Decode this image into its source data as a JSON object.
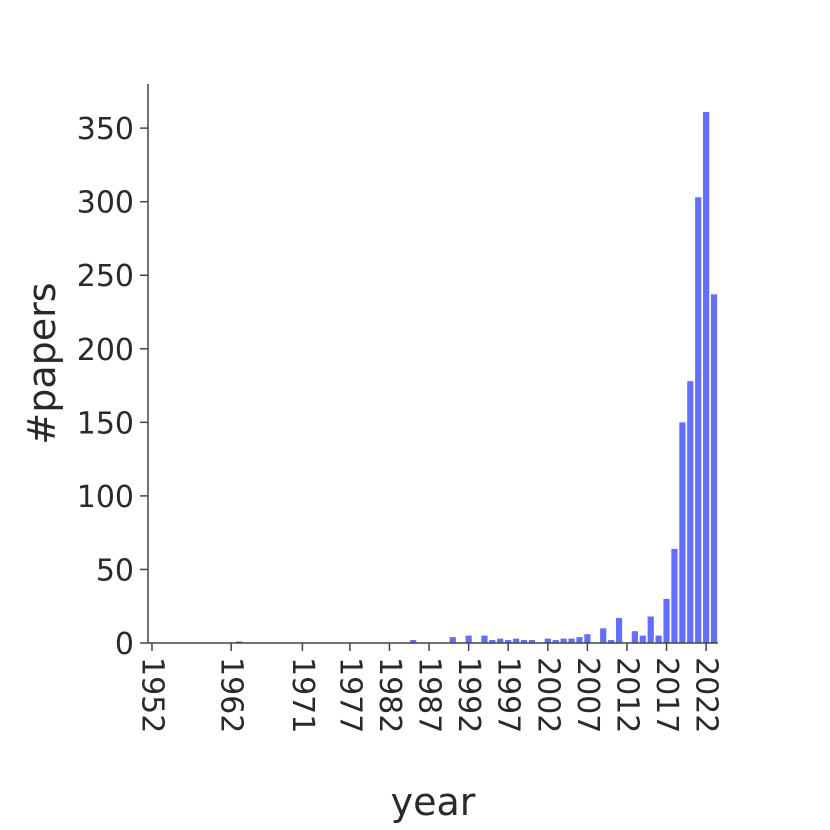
{
  "chart_data": {
    "type": "bar",
    "xlabel": "year",
    "ylabel": "#papers",
    "ylim": [
      0,
      380
    ],
    "xlim": [
      1951.5,
      2023.5
    ],
    "yticks": [
      0,
      50,
      100,
      150,
      200,
      250,
      300,
      350
    ],
    "xtick_labels": [
      "1952",
      "1962",
      "1971",
      "1977",
      "1982",
      "1987",
      "1992",
      "1997",
      "2002",
      "2007",
      "2012",
      "2017",
      "2022"
    ],
    "bar_color": "#636efa",
    "grid": false,
    "bars": [
      {
        "year": 1963,
        "value": 1
      },
      {
        "year": 1974,
        "value": 0
      },
      {
        "year": 1985,
        "value": 2
      },
      {
        "year": 1988,
        "value": 0
      },
      {
        "year": 1990,
        "value": 4
      },
      {
        "year": 1991,
        "value": 0
      },
      {
        "year": 1992,
        "value": 5
      },
      {
        "year": 1993,
        "value": 0
      },
      {
        "year": 1994,
        "value": 5
      },
      {
        "year": 1995,
        "value": 2
      },
      {
        "year": 1996,
        "value": 3
      },
      {
        "year": 1997,
        "value": 2
      },
      {
        "year": 1998,
        "value": 3
      },
      {
        "year": 1999,
        "value": 2
      },
      {
        "year": 2000,
        "value": 2
      },
      {
        "year": 2001,
        "value": 0
      },
      {
        "year": 2002,
        "value": 3
      },
      {
        "year": 2003,
        "value": 2
      },
      {
        "year": 2004,
        "value": 3
      },
      {
        "year": 2005,
        "value": 3
      },
      {
        "year": 2006,
        "value": 4
      },
      {
        "year": 2007,
        "value": 6
      },
      {
        "year": 2008,
        "value": 0
      },
      {
        "year": 2009,
        "value": 10
      },
      {
        "year": 2010,
        "value": 2
      },
      {
        "year": 2011,
        "value": 17
      },
      {
        "year": 2012,
        "value": 0
      },
      {
        "year": 2013,
        "value": 8
      },
      {
        "year": 2014,
        "value": 5
      },
      {
        "year": 2015,
        "value": 18
      },
      {
        "year": 2016,
        "value": 5
      },
      {
        "year": 2017,
        "value": 30
      },
      {
        "year": 2018,
        "value": 64
      },
      {
        "year": 2019,
        "value": 150
      },
      {
        "year": 2020,
        "value": 178
      },
      {
        "year": 2021,
        "value": 303
      },
      {
        "year": 2022,
        "value": 361
      },
      {
        "year": 2023,
        "value": 237
      }
    ]
  }
}
